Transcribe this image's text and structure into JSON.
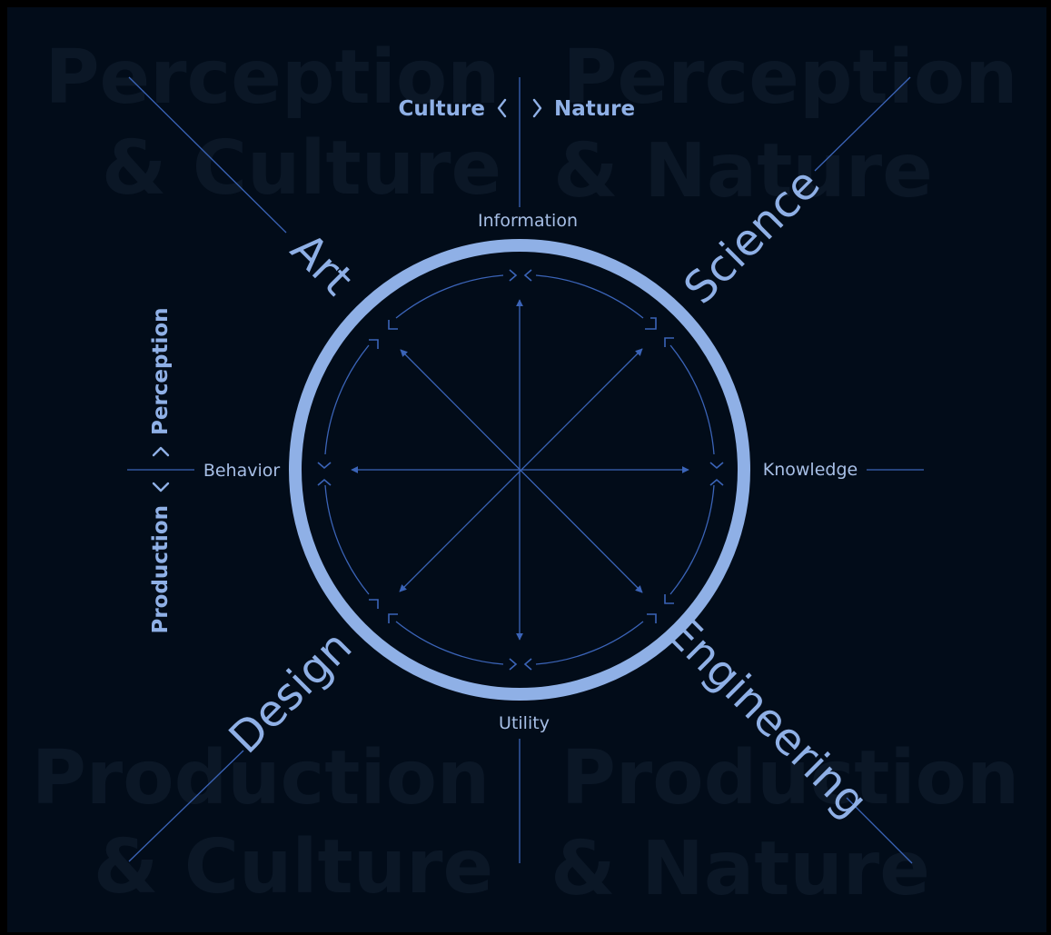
{
  "background": {
    "page_color": "#000000",
    "panel_color": "#020c19",
    "words": {
      "top_left": [
        "Perception",
        "& Culture"
      ],
      "top_right": [
        "Perception",
        "& Nature"
      ],
      "bottom_left": [
        "Production",
        "& Culture"
      ],
      "bottom_right": [
        "Production",
        "& Nature"
      ]
    }
  },
  "disciplines": {
    "art": "Art",
    "science": "Science",
    "design": "Design",
    "engineering": "Engineering"
  },
  "axis_labels": {
    "top": "Information",
    "bottom": "Utility",
    "left": "Behavior",
    "right": "Knowledge"
  },
  "axes": {
    "horizontal": {
      "left": "Culture",
      "right": "Nature"
    },
    "vertical": {
      "top": "Perception",
      "bottom": "Production"
    }
  },
  "colors": {
    "ring": "#8fb0e6",
    "label": "#a7bfe6",
    "line": "#3b64b8",
    "faded_text": "#0b1726"
  }
}
